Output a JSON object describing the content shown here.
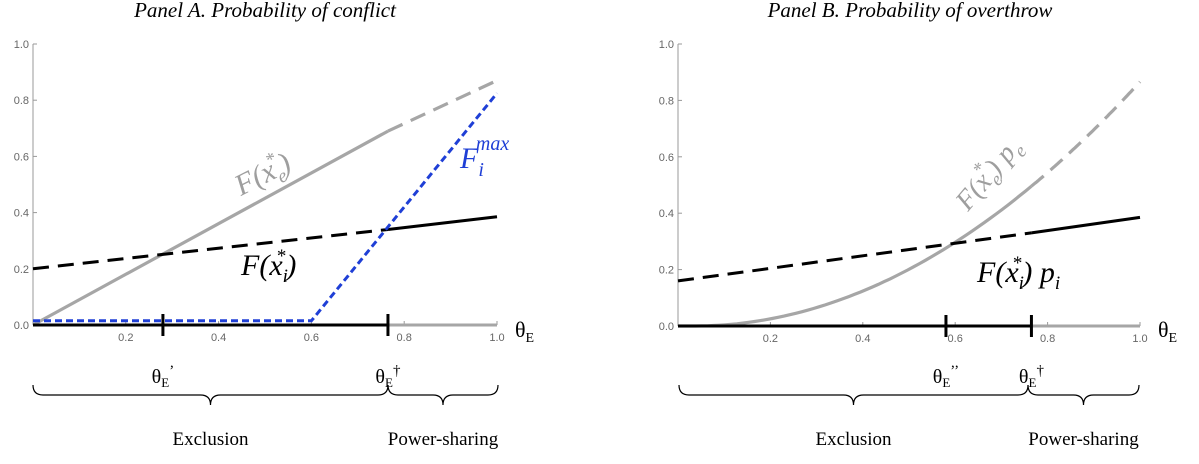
{
  "chart_data": [
    {
      "type": "line",
      "title": "Panel A. Probability of conflict",
      "xlabel": "θE",
      "xlim": [
        0,
        1
      ],
      "ylim": [
        0,
        1
      ],
      "x_ticks": [
        "0.2",
        "0.4",
        "0.6",
        "0.8",
        "1.0"
      ],
      "y_ticks": [
        "0.0",
        "0.2",
        "0.4",
        "0.6",
        "0.8",
        "1.0"
      ],
      "series": [
        {
          "name": "F(xe*)",
          "color": "#a6a6a6",
          "style": "solid-then-dashed",
          "x": [
            0,
            0.765,
            1.0
          ],
          "y": [
            0.0,
            0.69,
            0.87
          ],
          "dashed_from_x": 0.765
        },
        {
          "name": "F(xi*)",
          "color": "#000000",
          "style": "dashed-then-solid",
          "x": [
            0,
            0.765,
            1.0
          ],
          "y": [
            0.2,
            0.34,
            0.385
          ],
          "solid_from_x": 0.765
        },
        {
          "name": "Fi max",
          "color": "#1f3fd6",
          "style": "dashed",
          "x": [
            0,
            0.6,
            1.0
          ],
          "y": [
            0.015,
            0.015,
            0.825
          ]
        },
        {
          "name": "",
          "color": "#000000",
          "style": "solid-baseline",
          "x": [
            0,
            0.765
          ],
          "y": [
            0,
            0
          ]
        }
      ],
      "annotations": {
        "curve_fe": {
          "main": "F(x",
          "sub": "e",
          "sup": "*",
          "close": ")"
        },
        "curve_fi": {
          "main": "F(x",
          "sub": "i",
          "sup": "*",
          "close": ")"
        },
        "curve_fmax": {
          "main": "F",
          "sub": "i",
          "sup": "max"
        },
        "axis_theta": {
          "main": "θ",
          "sub": "E"
        },
        "marker_1": {
          "x": 0.28,
          "main": "θ",
          "sub": "E",
          "suffix": "’"
        },
        "marker_2": {
          "x": 0.765,
          "main": "θ",
          "sub": "E",
          "suffix": "†"
        },
        "brace_left": "Exclusion",
        "brace_right": "Power-sharing"
      }
    },
    {
      "type": "line",
      "title": "Panel B. Probability of overthrow",
      "xlabel": "θE",
      "xlim": [
        0,
        1
      ],
      "ylim": [
        0,
        1
      ],
      "x_ticks": [
        "0.2",
        "0.4",
        "0.6",
        "0.8",
        "1.0"
      ],
      "y_ticks": [
        "0.0",
        "0.2",
        "0.4",
        "0.6",
        "0.8",
        "1.0"
      ],
      "series": [
        {
          "name": "F(xe*) pe",
          "color": "#a6a6a6",
          "style": "solid-then-dashed",
          "curve": "quadratic",
          "x0": 0.035,
          "a": 0.93,
          "dashed_from_x": 0.765,
          "x_end": 1.0
        },
        {
          "name": "F(xi*) pi",
          "color": "#000000",
          "style": "dashed-then-solid",
          "x": [
            0,
            0.765,
            1.0
          ],
          "y": [
            0.16,
            0.33,
            0.385
          ],
          "solid_from_x": 0.765
        },
        {
          "name": "",
          "color": "#000000",
          "style": "solid-baseline",
          "x": [
            0,
            0.765
          ],
          "y": [
            0,
            0
          ]
        }
      ],
      "annotations": {
        "curve_fe": {
          "main": "F(x",
          "sub": "e",
          "sup": "*",
          "close": ") p",
          "sub2": "e"
        },
        "curve_fi": {
          "main": "F(x",
          "sub": "i",
          "sup": "*",
          "close": ") p",
          "sub2": "i"
        },
        "axis_theta": {
          "main": "θ",
          "sub": "E"
        },
        "marker_1": {
          "x": 0.58,
          "main": "θ",
          "sub": "E",
          "suffix": "’’"
        },
        "marker_2": {
          "x": 0.765,
          "main": "θ",
          "sub": "E",
          "suffix": "†"
        },
        "brace_left": "Exclusion",
        "brace_right": "Power-sharing"
      }
    }
  ]
}
